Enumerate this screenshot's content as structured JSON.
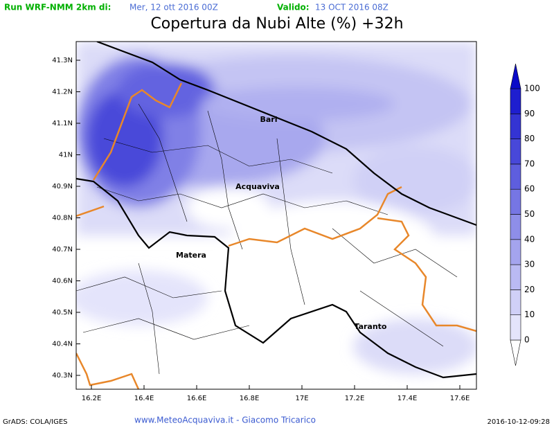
{
  "header": {
    "run_label": "Run WRF-NMM 2km di:",
    "run_date": "Mer, 12 ott 2016 00Z",
    "valid_label": "Valido:",
    "valid_date": "13 OCT 2016 08Z"
  },
  "title": "Copertura da Nubi Alte (%) +32h",
  "map": {
    "x_labels": [
      "16.2E",
      "16.4E",
      "16.6E",
      "16.8E",
      "17E",
      "17.2E",
      "17.4E",
      "17.6E"
    ],
    "y_labels": [
      "41.3N",
      "41.2N",
      "41.1N",
      "41N",
      "40.9N",
      "40.8N",
      "40.7N",
      "40.6N",
      "40.5N",
      "40.4N",
      "40.3N"
    ],
    "cities": [
      "Bari",
      "Acquaviva",
      "Matera",
      "Taranto"
    ]
  },
  "colorbar": {
    "levels": [
      0,
      10,
      20,
      30,
      40,
      50,
      60,
      70,
      80,
      90,
      100
    ],
    "colors": [
      "#ffffff",
      "#e4e4fb",
      "#d0d0f7",
      "#babaf3",
      "#a4a4ee",
      "#8e8ee9",
      "#7676e4",
      "#5e5ede",
      "#4848d9",
      "#3434d3",
      "#1e1ecf",
      "#0a0ac8"
    ]
  },
  "footer": {
    "left": "GrADS: COLA/IGES",
    "center": "www.MeteoAcquaviva.it - Giacomo Tricarico",
    "right": "2016-10-12-09:28"
  }
}
